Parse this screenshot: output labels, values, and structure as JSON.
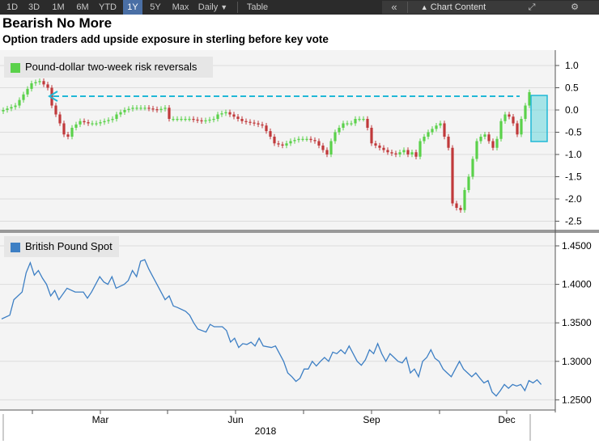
{
  "toolbar": {
    "ranges": [
      "1D",
      "3D",
      "1M",
      "6M",
      "YTD",
      "1Y",
      "5Y",
      "Max"
    ],
    "selected_range": "1Y",
    "frequency": "Daily",
    "table_label": "Table",
    "collapse_label": "«",
    "chart_content_label": "Chart Content",
    "expand_label": "⤢",
    "settings_label": "⚙"
  },
  "header": {
    "title": "Bearish No More",
    "subtitle": "Option traders add upside exposure in sterling before key vote"
  },
  "colors": {
    "up_candle": "#5ad14a",
    "down_candle": "#c0393b",
    "line": "#3d7fc4",
    "arrow": "#20b8d6",
    "highlight": "#46d0d8"
  },
  "chart_data": [
    {
      "type": "candlestick",
      "series": [
        {
          "name": "Pound-dollar two-week risk reversals"
        }
      ],
      "ylim": [
        -2.7,
        1.2
      ],
      "yticks": [
        "1.0",
        "0.5",
        "0.0",
        "-0.5",
        "-1.0",
        "-1.5",
        "-2.0",
        "-2.5"
      ],
      "yvalues": [
        1.0,
        0.5,
        0.0,
        -0.5,
        -1.0,
        -1.5,
        -2.0,
        -2.5
      ],
      "close_path": [
        [
          0,
          0.0
        ],
        [
          3,
          0.1
        ],
        [
          5,
          0.35
        ],
        [
          7,
          0.6
        ],
        [
          9,
          0.65
        ],
        [
          11,
          0.5
        ],
        [
          12,
          0.1
        ],
        [
          14,
          -0.3
        ],
        [
          15,
          -0.55
        ],
        [
          16,
          -0.6
        ],
        [
          17,
          -0.4
        ],
        [
          19,
          -0.25
        ],
        [
          21,
          -0.3
        ],
        [
          23,
          -0.3
        ],
        [
          25,
          -0.25
        ],
        [
          27,
          -0.2
        ],
        [
          28,
          -0.1
        ],
        [
          30,
          0.0
        ],
        [
          32,
          0.05
        ],
        [
          35,
          0.05
        ],
        [
          38,
          0.0
        ],
        [
          40,
          0.05
        ],
        [
          41,
          -0.2
        ],
        [
          43,
          -0.2
        ],
        [
          46,
          -0.2
        ],
        [
          49,
          -0.25
        ],
        [
          52,
          -0.2
        ],
        [
          53,
          -0.1
        ],
        [
          55,
          -0.05
        ],
        [
          57,
          -0.15
        ],
        [
          59,
          -0.25
        ],
        [
          62,
          -0.3
        ],
        [
          64,
          -0.35
        ],
        [
          66,
          -0.6
        ],
        [
          67,
          -0.75
        ],
        [
          69,
          -0.8
        ],
        [
          71,
          -0.7
        ],
        [
          73,
          -0.65
        ],
        [
          75,
          -0.65
        ],
        [
          77,
          -0.7
        ],
        [
          79,
          -0.9
        ],
        [
          80,
          -1.0
        ],
        [
          81,
          -0.7
        ],
        [
          82,
          -0.5
        ],
        [
          83,
          -0.4
        ],
        [
          84,
          -0.3
        ],
        [
          86,
          -0.3
        ],
        [
          87,
          -0.2
        ],
        [
          89,
          -0.2
        ],
        [
          90,
          -0.4
        ],
        [
          91,
          -0.75
        ],
        [
          93,
          -0.85
        ],
        [
          95,
          -0.95
        ],
        [
          97,
          -1.0
        ],
        [
          99,
          -0.9
        ],
        [
          100,
          -1.0
        ],
        [
          101,
          -0.95
        ],
        [
          102,
          -1.05
        ],
        [
          103,
          -0.7
        ],
        [
          105,
          -0.5
        ],
        [
          107,
          -0.35
        ],
        [
          108,
          -0.3
        ],
        [
          109,
          -0.6
        ],
        [
          110,
          -0.85
        ],
        [
          111,
          -2.1
        ],
        [
          112,
          -2.2
        ],
        [
          113,
          -2.25
        ],
        [
          114,
          -1.8
        ],
        [
          115,
          -1.5
        ],
        [
          116,
          -1.1
        ],
        [
          117,
          -0.7
        ],
        [
          118,
          -0.6
        ],
        [
          119,
          -0.55
        ],
        [
          120,
          -0.7
        ],
        [
          121,
          -0.85
        ],
        [
          122,
          -0.65
        ],
        [
          123,
          -0.25
        ],
        [
          124,
          -0.1
        ],
        [
          125,
          -0.15
        ],
        [
          126,
          -0.3
        ],
        [
          127,
          -0.55
        ],
        [
          128,
          -0.2
        ],
        [
          129,
          0.1
        ],
        [
          130,
          0.4
        ]
      ]
    },
    {
      "type": "line",
      "series": [
        {
          "name": "British Pound Spot"
        }
      ],
      "ylim": [
        1.235,
        1.465
      ],
      "yticks": [
        "1.4500",
        "1.4000",
        "1.3500",
        "1.3000",
        "1.2500"
      ],
      "yvalues": [
        1.45,
        1.4,
        1.35,
        1.3,
        1.25
      ],
      "xticks": [
        "Mar",
        "Jun",
        "Sep",
        "Dec"
      ],
      "year_label": "2018",
      "values": [
        [
          0,
          1.355
        ],
        [
          2,
          1.36
        ],
        [
          3,
          1.38
        ],
        [
          5,
          1.39
        ],
        [
          6,
          1.415
        ],
        [
          7,
          1.428
        ],
        [
          8,
          1.412
        ],
        [
          9,
          1.418
        ],
        [
          10,
          1.408
        ],
        [
          11,
          1.4
        ],
        [
          12,
          1.385
        ],
        [
          13,
          1.392
        ],
        [
          14,
          1.38
        ],
        [
          16,
          1.395
        ],
        [
          18,
          1.39
        ],
        [
          20,
          1.39
        ],
        [
          21,
          1.382
        ],
        [
          22,
          1.39
        ],
        [
          24,
          1.41
        ],
        [
          25,
          1.403
        ],
        [
          26,
          1.4
        ],
        [
          27,
          1.41
        ],
        [
          28,
          1.395
        ],
        [
          30,
          1.4
        ],
        [
          31,
          1.405
        ],
        [
          32,
          1.418
        ],
        [
          33,
          1.41
        ],
        [
          34,
          1.43
        ],
        [
          35,
          1.432
        ],
        [
          36,
          1.42
        ],
        [
          37,
          1.41
        ],
        [
          38,
          1.4
        ],
        [
          40,
          1.38
        ],
        [
          41,
          1.385
        ],
        [
          42,
          1.372
        ],
        [
          43,
          1.37
        ],
        [
          45,
          1.365
        ],
        [
          46,
          1.36
        ],
        [
          47,
          1.35
        ],
        [
          48,
          1.342
        ],
        [
          50,
          1.338
        ],
        [
          51,
          1.348
        ],
        [
          52,
          1.345
        ],
        [
          54,
          1.345
        ],
        [
          55,
          1.34
        ],
        [
          56,
          1.325
        ],
        [
          57,
          1.33
        ],
        [
          58,
          1.318
        ],
        [
          59,
          1.323
        ],
        [
          60,
          1.322
        ],
        [
          61,
          1.325
        ],
        [
          62,
          1.32
        ],
        [
          63,
          1.33
        ],
        [
          64,
          1.32
        ],
        [
          66,
          1.318
        ],
        [
          67,
          1.32
        ],
        [
          69,
          1.3
        ],
        [
          70,
          1.285
        ],
        [
          71,
          1.28
        ],
        [
          72,
          1.274
        ],
        [
          73,
          1.278
        ],
        [
          74,
          1.29
        ],
        [
          75,
          1.29
        ],
        [
          76,
          1.3
        ],
        [
          77,
          1.294
        ],
        [
          78,
          1.3
        ],
        [
          79,
          1.305
        ],
        [
          80,
          1.3
        ],
        [
          81,
          1.312
        ],
        [
          82,
          1.31
        ],
        [
          83,
          1.315
        ],
        [
          84,
          1.31
        ],
        [
          85,
          1.32
        ],
        [
          86,
          1.31
        ],
        [
          87,
          1.3
        ],
        [
          88,
          1.295
        ],
        [
          89,
          1.302
        ],
        [
          90,
          1.315
        ],
        [
          91,
          1.31
        ],
        [
          92,
          1.323
        ],
        [
          93,
          1.31
        ],
        [
          94,
          1.3
        ],
        [
          95,
          1.31
        ],
        [
          96,
          1.305
        ],
        [
          97,
          1.3
        ],
        [
          98,
          1.298
        ],
        [
          99,
          1.305
        ],
        [
          100,
          1.285
        ],
        [
          101,
          1.29
        ],
        [
          102,
          1.28
        ],
        [
          103,
          1.3
        ],
        [
          104,
          1.305
        ],
        [
          105,
          1.315
        ],
        [
          106,
          1.304
        ],
        [
          107,
          1.3
        ],
        [
          108,
          1.29
        ],
        [
          109,
          1.285
        ],
        [
          110,
          1.28
        ],
        [
          111,
          1.29
        ],
        [
          112,
          1.3
        ],
        [
          113,
          1.29
        ],
        [
          114,
          1.285
        ],
        [
          115,
          1.28
        ],
        [
          116,
          1.285
        ],
        [
          117,
          1.278
        ],
        [
          118,
          1.272
        ],
        [
          119,
          1.275
        ],
        [
          120,
          1.26
        ],
        [
          121,
          1.255
        ],
        [
          122,
          1.262
        ],
        [
          123,
          1.27
        ],
        [
          124,
          1.265
        ],
        [
          125,
          1.27
        ],
        [
          126,
          1.268
        ],
        [
          127,
          1.27
        ],
        [
          128,
          1.262
        ],
        [
          129,
          1.275
        ],
        [
          130,
          1.272
        ],
        [
          131,
          1.276
        ],
        [
          132,
          1.27
        ]
      ]
    }
  ]
}
